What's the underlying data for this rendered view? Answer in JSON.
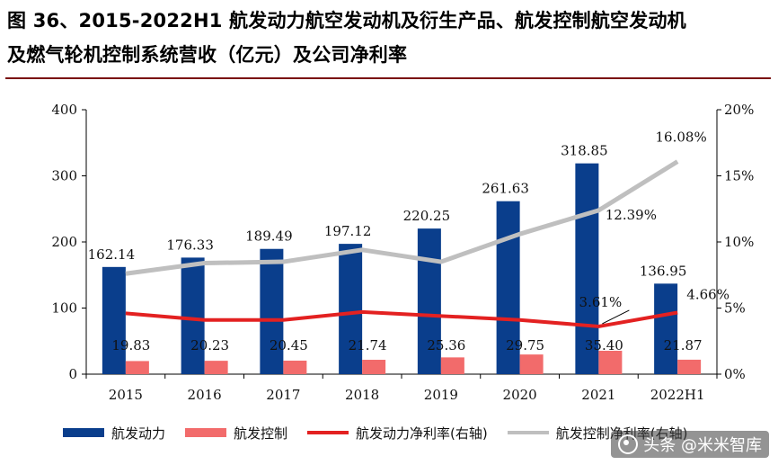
{
  "title": {
    "line1": "图 36、2015-2022H1 航发动力航空发动机及衍生产品、航发控制航空发动机",
    "line2": "及燃气轮机控制系统营收（亿元）及公司净利率"
  },
  "colors": {
    "bar1": "#0a3e8c",
    "bar2": "#f26b6b",
    "line1": "#e32121",
    "line2": "#bfbfbf",
    "rule": "#7a0f0f"
  },
  "chart_data": {
    "type": "bar",
    "categories": [
      "2015",
      "2016",
      "2017",
      "2018",
      "2019",
      "2020",
      "2021",
      "2022H1"
    ],
    "series": [
      {
        "name": "航发动力",
        "axis": "left",
        "kind": "bar",
        "values": [
          162.14,
          176.33,
          189.49,
          197.12,
          220.25,
          261.63,
          318.85,
          136.95
        ],
        "labels": [
          "162.14",
          "176.33",
          "189.49",
          "197.12",
          "220.25",
          "261.63",
          "318.85",
          "136.95"
        ]
      },
      {
        "name": "航发控制",
        "axis": "left",
        "kind": "bar",
        "values": [
          19.83,
          20.23,
          20.45,
          21.74,
          25.36,
          29.75,
          35.4,
          21.87
        ],
        "labels": [
          "19.83",
          "20.23",
          "20.45",
          "21.74",
          "25.36",
          "29.75",
          "35.40",
          "21.87"
        ]
      },
      {
        "name": "航发动力净利率(右轴)",
        "axis": "right",
        "kind": "line",
        "values": [
          4.6,
          4.1,
          4.1,
          4.7,
          4.4,
          4.1,
          3.61,
          4.66
        ]
      },
      {
        "name": "航发控制净利率(右轴)",
        "axis": "right",
        "kind": "line",
        "values": [
          7.6,
          8.4,
          8.5,
          9.4,
          8.5,
          10.6,
          12.39,
          16.08
        ]
      }
    ],
    "line_labels": [
      {
        "series": 2,
        "index": 6,
        "text": "3.61%"
      },
      {
        "series": 2,
        "index": 7,
        "text": "4.66%"
      },
      {
        "series": 3,
        "index": 6,
        "text": "12.39%"
      },
      {
        "series": 3,
        "index": 7,
        "text": "16.08%"
      }
    ],
    "y_left": {
      "min": 0,
      "max": 400,
      "ticks": [
        0,
        100,
        200,
        300,
        400
      ],
      "labels": [
        "0",
        "100",
        "200",
        "300",
        "400"
      ]
    },
    "y_right": {
      "min": 0,
      "max": 20,
      "ticks": [
        0,
        5,
        10,
        15,
        20
      ],
      "labels": [
        "0%",
        "5%",
        "10%",
        "15%",
        "20%"
      ]
    },
    "legend": {
      "items": [
        "航发动力",
        "航发控制",
        "航发动力净利率(右轴)",
        "航发控制净利率(右轴)"
      ],
      "position": "bottom"
    },
    "grid": false
  },
  "watermark": {
    "text": "头条 @米米智库"
  }
}
